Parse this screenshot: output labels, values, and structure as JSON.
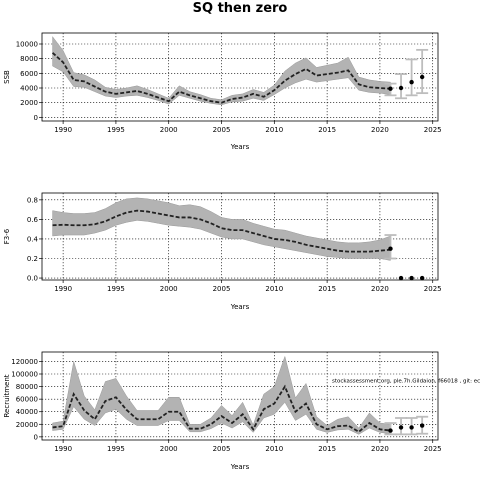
{
  "figure": {
    "title": "SQ then zero"
  },
  "colors": {
    "band": "#b3b3b3",
    "proj_band": "#bdbdbd",
    "line": "#222222",
    "point": "#000000",
    "grid": "#000000"
  },
  "chart_data": [
    {
      "type": "line",
      "title": "",
      "xlabel": "Years",
      "ylabel": "SSB",
      "xlim": [
        1988,
        2025.5
      ],
      "ylim": [
        -500,
        11500
      ],
      "xticks": [
        1990,
        1995,
        2000,
        2005,
        2010,
        2015,
        2020,
        2025
      ],
      "yticks": [
        0,
        2000,
        4000,
        6000,
        8000,
        10000
      ],
      "grid": true,
      "series": [
        {
          "role": "median",
          "x": [
            1989,
            1990,
            1991,
            1992,
            1993,
            1994,
            1995,
            1996,
            1997,
            1998,
            1999,
            2000,
            2001,
            2002,
            2003,
            2004,
            2005,
            2006,
            2007,
            2008,
            2009,
            2010,
            2011,
            2012,
            2013,
            2014,
            2015,
            2016,
            2017,
            2018,
            2019,
            2020,
            2021
          ],
          "y": [
            8800,
            7500,
            5100,
            4900,
            4200,
            3500,
            3200,
            3400,
            3600,
            3200,
            2700,
            2200,
            3500,
            3000,
            2600,
            2200,
            2000,
            2500,
            2700,
            3200,
            2800,
            3700,
            5000,
            5900,
            6600,
            5700,
            5900,
            6100,
            6400,
            4500,
            4100,
            4000,
            3900
          ],
          "lower": [
            7000,
            6200,
            4200,
            4100,
            3500,
            2900,
            2700,
            2900,
            3000,
            2700,
            2300,
            1800,
            3000,
            2600,
            2200,
            1900,
            1700,
            2100,
            2200,
            2600,
            2300,
            3100,
            4000,
            4700,
            5200,
            4800,
            5000,
            5200,
            5400,
            3700,
            3400,
            3300,
            3100
          ],
          "upper": [
            11000,
            9100,
            6100,
            5800,
            5100,
            4100,
            3800,
            4000,
            4300,
            3800,
            3200,
            2600,
            4300,
            3500,
            3100,
            2600,
            2400,
            3000,
            3200,
            3800,
            3400,
            4400,
            6300,
            7400,
            8100,
            6800,
            7100,
            7400,
            8200,
            5500,
            5100,
            4900,
            4800
          ]
        },
        {
          "role": "projection",
          "x": [
            2021,
            2022,
            2023,
            2024
          ],
          "y": [
            3900,
            4000,
            4800,
            5500
          ],
          "lower": [
            3000,
            2600,
            3000,
            3300
          ],
          "upper": [
            4600,
            5900,
            7900,
            9200
          ]
        }
      ]
    },
    {
      "type": "line",
      "title": "",
      "xlabel": "Years",
      "ylabel": "F3-6",
      "xlim": [
        1988,
        2025.5
      ],
      "ylim": [
        -0.02,
        0.87
      ],
      "xticks": [
        1990,
        1995,
        2000,
        2005,
        2010,
        2015,
        2020,
        2025
      ],
      "yticks": [
        0.0,
        0.2,
        0.4,
        0.6,
        0.8
      ],
      "grid": true,
      "series": [
        {
          "role": "median",
          "x": [
            1989,
            1990,
            1991,
            1992,
            1993,
            1994,
            1995,
            1996,
            1997,
            1998,
            1999,
            2000,
            2001,
            2002,
            2003,
            2004,
            2005,
            2006,
            2007,
            2008,
            2009,
            2010,
            2011,
            2012,
            2013,
            2014,
            2015,
            2016,
            2017,
            2018,
            2019,
            2020,
            2021
          ],
          "y": [
            0.54,
            0.545,
            0.54,
            0.54,
            0.55,
            0.58,
            0.63,
            0.67,
            0.69,
            0.68,
            0.66,
            0.64,
            0.62,
            0.62,
            0.6,
            0.56,
            0.51,
            0.49,
            0.49,
            0.46,
            0.43,
            0.4,
            0.39,
            0.37,
            0.34,
            0.32,
            0.3,
            0.28,
            0.27,
            0.27,
            0.27,
            0.28,
            0.29
          ],
          "lower": [
            0.43,
            0.44,
            0.44,
            0.44,
            0.46,
            0.49,
            0.54,
            0.57,
            0.59,
            0.58,
            0.56,
            0.54,
            0.53,
            0.52,
            0.5,
            0.46,
            0.42,
            0.4,
            0.4,
            0.37,
            0.34,
            0.32,
            0.3,
            0.28,
            0.26,
            0.24,
            0.22,
            0.21,
            0.2,
            0.2,
            0.2,
            0.2,
            0.18
          ],
          "upper": [
            0.69,
            0.67,
            0.66,
            0.66,
            0.67,
            0.71,
            0.77,
            0.81,
            0.82,
            0.81,
            0.79,
            0.77,
            0.74,
            0.75,
            0.73,
            0.68,
            0.62,
            0.6,
            0.6,
            0.56,
            0.53,
            0.5,
            0.49,
            0.46,
            0.43,
            0.41,
            0.39,
            0.37,
            0.36,
            0.36,
            0.37,
            0.39,
            0.43
          ]
        },
        {
          "role": "projection",
          "x": [
            2021,
            2022,
            2023,
            2024
          ],
          "y": [
            0.3,
            0.0,
            0.0,
            0.0
          ],
          "lower": [
            0.2,
            0.0,
            0.0,
            0.0
          ],
          "upper": [
            0.44,
            0.0,
            0.0,
            0.0
          ]
        }
      ]
    },
    {
      "type": "line",
      "title": "",
      "xlabel": "Years",
      "ylabel": "Recruitment",
      "xlim": [
        1988,
        2025.5
      ],
      "ylim": [
        -5000,
        135000
      ],
      "xticks": [
        1990,
        1995,
        2000,
        2005,
        2010,
        2015,
        2020,
        2025
      ],
      "yticks": [
        0,
        20000,
        40000,
        60000,
        80000,
        100000,
        120000
      ],
      "grid": true,
      "annotation": "stockassessment.org, ple.7h.Gildaion, f66018 , git: ec2c",
      "series": [
        {
          "role": "median",
          "x": [
            1989,
            1990,
            1991,
            1992,
            1993,
            1994,
            1995,
            1996,
            1997,
            1998,
            1999,
            2000,
            2001,
            2002,
            2003,
            2004,
            2005,
            2006,
            2007,
            2008,
            2009,
            2010,
            2011,
            2012,
            2013,
            2014,
            2015,
            2016,
            2017,
            2018,
            2019,
            2020,
            2021
          ],
          "y": [
            15000,
            17000,
            68000,
            42000,
            28000,
            57000,
            63000,
            43000,
            28000,
            28000,
            28000,
            40000,
            40000,
            13000,
            13000,
            20000,
            33000,
            22000,
            36000,
            12000,
            44000,
            53000,
            80000,
            40000,
            53000,
            20000,
            12000,
            17000,
            18000,
            8000,
            22000,
            12000,
            10000
          ],
          "lower": [
            10000,
            12000,
            48000,
            28000,
            18000,
            38000,
            44000,
            28000,
            18000,
            18000,
            18000,
            26000,
            26000,
            8000,
            8000,
            13000,
            22000,
            14000,
            24000,
            7000,
            30000,
            36000,
            55000,
            26000,
            36000,
            12000,
            7000,
            11000,
            12000,
            4000,
            14000,
            7000,
            5000
          ],
          "upper": [
            22000,
            25000,
            120000,
            65000,
            43000,
            88000,
            93000,
            65000,
            42000,
            42000,
            42000,
            63000,
            63000,
            20000,
            20000,
            30000,
            50000,
            34000,
            55000,
            19000,
            68000,
            80000,
            128000,
            62000,
            85000,
            32000,
            18000,
            28000,
            32000,
            14000,
            38000,
            22000,
            20000
          ]
        },
        {
          "role": "projection",
          "x": [
            2021,
            2022,
            2023,
            2024
          ],
          "y": [
            10000,
            15000,
            15000,
            18000
          ],
          "lower": [
            4000,
            4000,
            4000,
            5000
          ],
          "upper": [
            22000,
            30000,
            30000,
            32000
          ]
        }
      ]
    }
  ]
}
